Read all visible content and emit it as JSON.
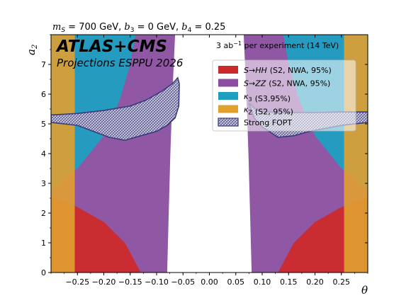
{
  "chart_data": {
    "type": "area",
    "title": "m_S = 700 GeV, b_3 = 0 GeV, b_4 = 0.25",
    "title_parts": {
      "m": "m",
      "m_sub": "S",
      "m_val": " = 700 GeV, ",
      "b3": "b",
      "b3_sub": "3",
      "b3_val": " = 0 GeV, ",
      "b4": "b",
      "b4_sub": "4",
      "b4_val": " = 0.25"
    },
    "experiment": "ATLAS+CMS",
    "subtitle": "Projections ESPPU 2026",
    "luminosity": {
      "pre": "3 ab",
      "sup": "−1",
      "post": " per experiment (14 TeV)"
    },
    "xlabel": "θ",
    "ylabel": "a",
    "ylabel_sub": "2",
    "xlim": [
      -0.3,
      0.3
    ],
    "ylim": [
      0,
      8
    ],
    "xticks": [
      "−0.25",
      "−0.20",
      "−0.15",
      "−0.10",
      "−0.05",
      "0.00",
      "0.05",
      "0.10",
      "0.15",
      "0.20",
      "0.25"
    ],
    "xtick_values": [
      -0.25,
      -0.2,
      -0.15,
      -0.1,
      -0.05,
      0.0,
      0.05,
      0.1,
      0.15,
      0.2,
      0.25
    ],
    "yticks": [
      "0",
      "1",
      "2",
      "3",
      "4",
      "5",
      "6",
      "7"
    ],
    "ytick_values": [
      0,
      1,
      2,
      3,
      4,
      5,
      6,
      7
    ],
    "legend_position": "upper-right",
    "series": [
      {
        "name": "S→HH",
        "note": "(S2, NWA, 95%)",
        "color": "#cc2a2a",
        "regions": [
          [
            [
              -0.3,
              0
            ],
            [
              -0.3,
              2.5
            ],
            [
              -0.25,
              2.2
            ],
            [
              -0.2,
              1.7
            ],
            [
              -0.16,
              1.0
            ],
            [
              -0.13,
              0
            ]
          ],
          [
            [
              0.13,
              0
            ],
            [
              0.16,
              1.0
            ],
            [
              0.2,
              1.7
            ],
            [
              0.25,
              2.2
            ],
            [
              0.3,
              2.5
            ],
            [
              0.3,
              0
            ]
          ]
        ]
      },
      {
        "name": "S→ZZ",
        "note": "(S2, NWA, 95%)",
        "color": "#8a4ea0",
        "regions": [
          [
            [
              -0.3,
              0
            ],
            [
              -0.3,
              8
            ],
            [
              -0.065,
              8
            ],
            [
              -0.07,
              6.0
            ],
            [
              -0.074,
              4.0
            ],
            [
              -0.077,
              2.0
            ],
            [
              -0.08,
              0
            ]
          ],
          [
            [
              0.3,
              0
            ],
            [
              0.3,
              8
            ],
            [
              0.065,
              8
            ],
            [
              0.07,
              6.0
            ],
            [
              0.074,
              4.0
            ],
            [
              0.077,
              2.0
            ],
            [
              0.08,
              0
            ]
          ]
        ]
      },
      {
        "name": "κ3",
        "note": "(S3,95%)",
        "color": "#1f9fc0",
        "regions": [
          [
            [
              -0.3,
              8
            ],
            [
              -0.3,
              2.8
            ],
            [
              -0.25,
              3.5
            ],
            [
              -0.2,
              4.6
            ],
            [
              -0.17,
              5.8
            ],
            [
              -0.15,
              7.0
            ],
            [
              -0.14,
              8
            ]
          ],
          [
            [
              0.3,
              8
            ],
            [
              0.3,
              2.8
            ],
            [
              0.25,
              3.5
            ],
            [
              0.2,
              4.6
            ],
            [
              0.17,
              5.8
            ],
            [
              0.15,
              7.0
            ],
            [
              0.14,
              8
            ]
          ]
        ]
      },
      {
        "name": "κZ",
        "note": "(S2, 95%)",
        "color": "#e0a030",
        "regions": [
          [
            [
              -0.3,
              0
            ],
            [
              -0.3,
              8
            ],
            [
              -0.255,
              8
            ],
            [
              -0.255,
              0
            ]
          ],
          [
            [
              0.255,
              0
            ],
            [
              0.255,
              8
            ],
            [
              0.3,
              8
            ],
            [
              0.3,
              0
            ]
          ]
        ]
      },
      {
        "name": "Strong FOPT",
        "note": "",
        "color": "#3a3a7a",
        "regions": [
          [
            [
              -0.3,
              5.3
            ],
            [
              -0.25,
              5.35
            ],
            [
              -0.2,
              5.45
            ],
            [
              -0.15,
              5.6
            ],
            [
              -0.12,
              5.8
            ],
            [
              -0.09,
              6.1
            ],
            [
              -0.07,
              6.35
            ],
            [
              -0.06,
              6.55
            ],
            [
              -0.057,
              6.35
            ],
            [
              -0.058,
              5.6
            ],
            [
              -0.065,
              5.2
            ],
            [
              -0.08,
              4.95
            ],
            [
              -0.1,
              4.75
            ],
            [
              -0.13,
              4.6
            ],
            [
              -0.16,
              4.45
            ],
            [
              -0.19,
              4.55
            ],
            [
              -0.22,
              4.75
            ],
            [
              -0.25,
              4.95
            ],
            [
              -0.3,
              5.05
            ]
          ],
          [
            [
              0.075,
              5.7
            ],
            [
              0.09,
              5.45
            ],
            [
              0.11,
              5.4
            ],
            [
              0.15,
              5.38
            ],
            [
              0.2,
              5.38
            ],
            [
              0.25,
              5.4
            ],
            [
              0.3,
              5.4
            ],
            [
              0.3,
              5.05
            ],
            [
              0.25,
              4.95
            ],
            [
              0.22,
              4.85
            ],
            [
              0.19,
              4.75
            ],
            [
              0.16,
              4.6
            ],
            [
              0.13,
              4.55
            ],
            [
              0.1,
              4.9
            ],
            [
              0.085,
              5.2
            ]
          ]
        ]
      }
    ]
  }
}
